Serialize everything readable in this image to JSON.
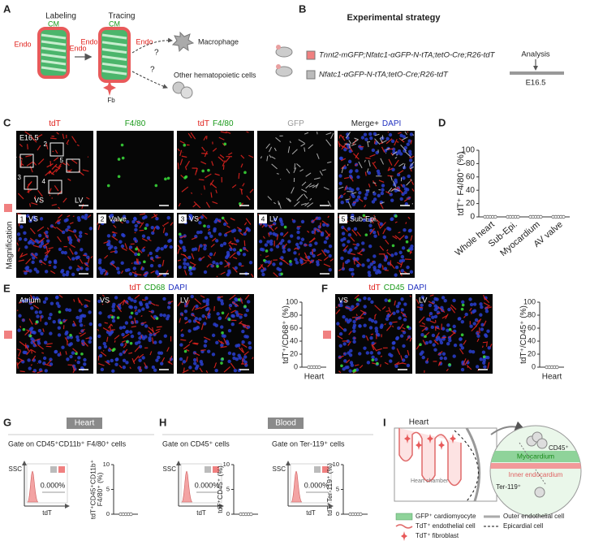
{
  "A": {
    "label": "A",
    "labeling": "Labeling",
    "tracing": "Tracing",
    "cm": [
      "CM",
      "CM"
    ],
    "endo": [
      "Endo",
      "Endo",
      "Endo",
      "Endo"
    ],
    "fb": "Fb",
    "question": [
      "?",
      "?"
    ],
    "macrophage": "Macrophage",
    "other": "Other hematopoietic cells"
  },
  "B": {
    "label": "B",
    "title": "Experimental strategy",
    "groups": [
      {
        "name": "Tnnt2-mGFP;Nfatc1-αGFP-N-tTA;tetO-Cre;R26-tdT",
        "color": "#f08080"
      },
      {
        "name": "Nfatc1-αGFP-N-tTA;tetO-Cre;R26-tdT",
        "color": "#bbbbbb"
      }
    ],
    "analysis": "Analysis",
    "stage": "E16.5"
  },
  "C": {
    "label": "C",
    "headers": [
      [
        {
          "text": "tdT",
          "color": "#e0201b"
        }
      ],
      [
        {
          "text": "F4/80",
          "color": "#1a9a1a"
        }
      ],
      [
        {
          "text": "tdT",
          "color": "#e0201b"
        },
        {
          "text": "F4/80",
          "color": "#1a9a1a"
        }
      ],
      [
        {
          "text": "GFP",
          "color": "#999999"
        }
      ],
      [
        {
          "text": "Merge+",
          "color": "#222222"
        },
        {
          "text": "DAPI",
          "color": "#2030c0"
        }
      ]
    ],
    "stage": "E16.5",
    "boxes": [
      "1",
      "2",
      "3",
      "4",
      "5"
    ],
    "regions": [
      "VS",
      "LV"
    ],
    "side": "Magnification",
    "zooms": [
      [
        "1",
        "VS"
      ],
      [
        "2",
        "Valve"
      ],
      [
        "3",
        "VS"
      ],
      [
        "4",
        "LV"
      ],
      [
        "5",
        "Sub-Epi."
      ]
    ]
  },
  "D": {
    "label": "D",
    "chart": {
      "type": "dot",
      "color": "#666666",
      "ylabel": [
        "tdT⁺ F4/80⁺ (%)"
      ],
      "categories": [
        "Whole heart",
        "Sub-Epi.",
        "Myocardium",
        "AV valve"
      ],
      "values": [
        [
          0,
          0,
          0,
          0,
          0
        ],
        [
          0,
          0,
          0,
          0,
          0
        ],
        [
          0,
          0,
          0,
          0,
          0
        ],
        [
          0,
          0,
          0,
          0,
          0
        ]
      ],
      "ylim": [
        0,
        100
      ],
      "yticks": [
        0,
        20,
        40,
        60,
        80,
        100
      ]
    }
  },
  "E": {
    "label": "E",
    "stain": [
      {
        "text": "tdT",
        "color": "#e0201b"
      },
      {
        "text": "CD68",
        "color": "#1a9a1a"
      },
      {
        "text": "DAPI",
        "color": "#2030c0"
      }
    ],
    "regions": [
      "Atrium",
      "VS",
      "LV"
    ],
    "chart": {
      "type": "dot",
      "color": "#666666",
      "ylabel": [
        "tdT⁺/CD68⁺ (%)"
      ],
      "categories": [
        "Heart"
      ],
      "values": [
        [
          0,
          0,
          0,
          0,
          0
        ]
      ],
      "ylim": [
        0,
        100
      ],
      "yticks": [
        0,
        20,
        40,
        60,
        80,
        100
      ]
    }
  },
  "F": {
    "label": "F",
    "stain": [
      {
        "text": "tdT",
        "color": "#e0201b"
      },
      {
        "text": "CD45",
        "color": "#1a9a1a"
      },
      {
        "text": "DAPI",
        "color": "#2030c0"
      }
    ],
    "regions": [
      "VS",
      "LV"
    ],
    "chart": {
      "type": "dot",
      "color": "#666666",
      "ylabel": [
        "tdT⁺/CD45⁺ (%)"
      ],
      "categories": [
        "Heart"
      ],
      "values": [
        [
          0,
          0,
          0,
          0,
          0
        ]
      ],
      "ylim": [
        0,
        100
      ],
      "yticks": [
        0,
        20,
        40,
        60,
        80,
        100
      ]
    }
  },
  "G": {
    "label": "G",
    "tissue": "Heart",
    "panels": [
      {
        "gate": "Gate on CD45⁺CD11b⁺ F4/80⁺ cells",
        "flow": {
          "y": "SSC",
          "x": "tdT",
          "pct": "0.000%"
        },
        "chart": {
          "type": "dot",
          "color": "#666666",
          "ylabel": [
            "tdT⁺CD45⁺CD11b⁺",
            "F4/80⁺ (%)"
          ],
          "categories": [
            null
          ],
          "values": [
            [
              0,
              0,
              0,
              0,
              0
            ]
          ],
          "ylim": [
            0,
            10
          ],
          "yticks": [
            0,
            5,
            10
          ]
        }
      }
    ]
  },
  "H": {
    "label": "H",
    "tissue": "Blood",
    "panels": [
      {
        "gate": "Gate on CD45⁺ cells",
        "flow": {
          "y": "SSC",
          "x": "tdT",
          "pct": "0.000%"
        },
        "chart": {
          "type": "dot",
          "color": "#666666",
          "ylabel": [
            "tdT⁺CD45⁺ (%)"
          ],
          "categories": [
            null
          ],
          "values": [
            [
              0,
              0,
              0,
              0,
              0
            ]
          ],
          "ylim": [
            0,
            10
          ],
          "yticks": [
            0,
            5,
            10
          ]
        }
      },
      {
        "gate": "Gate on Ter-119⁺ cells",
        "flow": {
          "y": "SSC",
          "x": "tdT",
          "pct": "0.000%"
        },
        "chart": {
          "type": "dot",
          "color": "#666666",
          "ylabel": [
            "tdT⁺Ter-119⁺ (%)"
          ],
          "categories": [
            null
          ],
          "values": [
            [
              0,
              0,
              0,
              0,
              0
            ]
          ],
          "ylim": [
            0,
            10
          ],
          "yticks": [
            0,
            5,
            10
          ]
        }
      }
    ]
  },
  "I": {
    "label": "I",
    "heart": "Heart",
    "chamber": "Heart chamber",
    "myocardium": "Myocardium",
    "cd45": "CD45⁺",
    "inner": "Inner endocardium",
    "ter": "Ter-119⁺",
    "legend": [
      "GFP⁺ cardiomyocyte",
      "TdT⁺ endothelial cell",
      "TdT⁺ fibroblast",
      "Outer endothelial cell",
      "Epicardial cell"
    ]
  }
}
